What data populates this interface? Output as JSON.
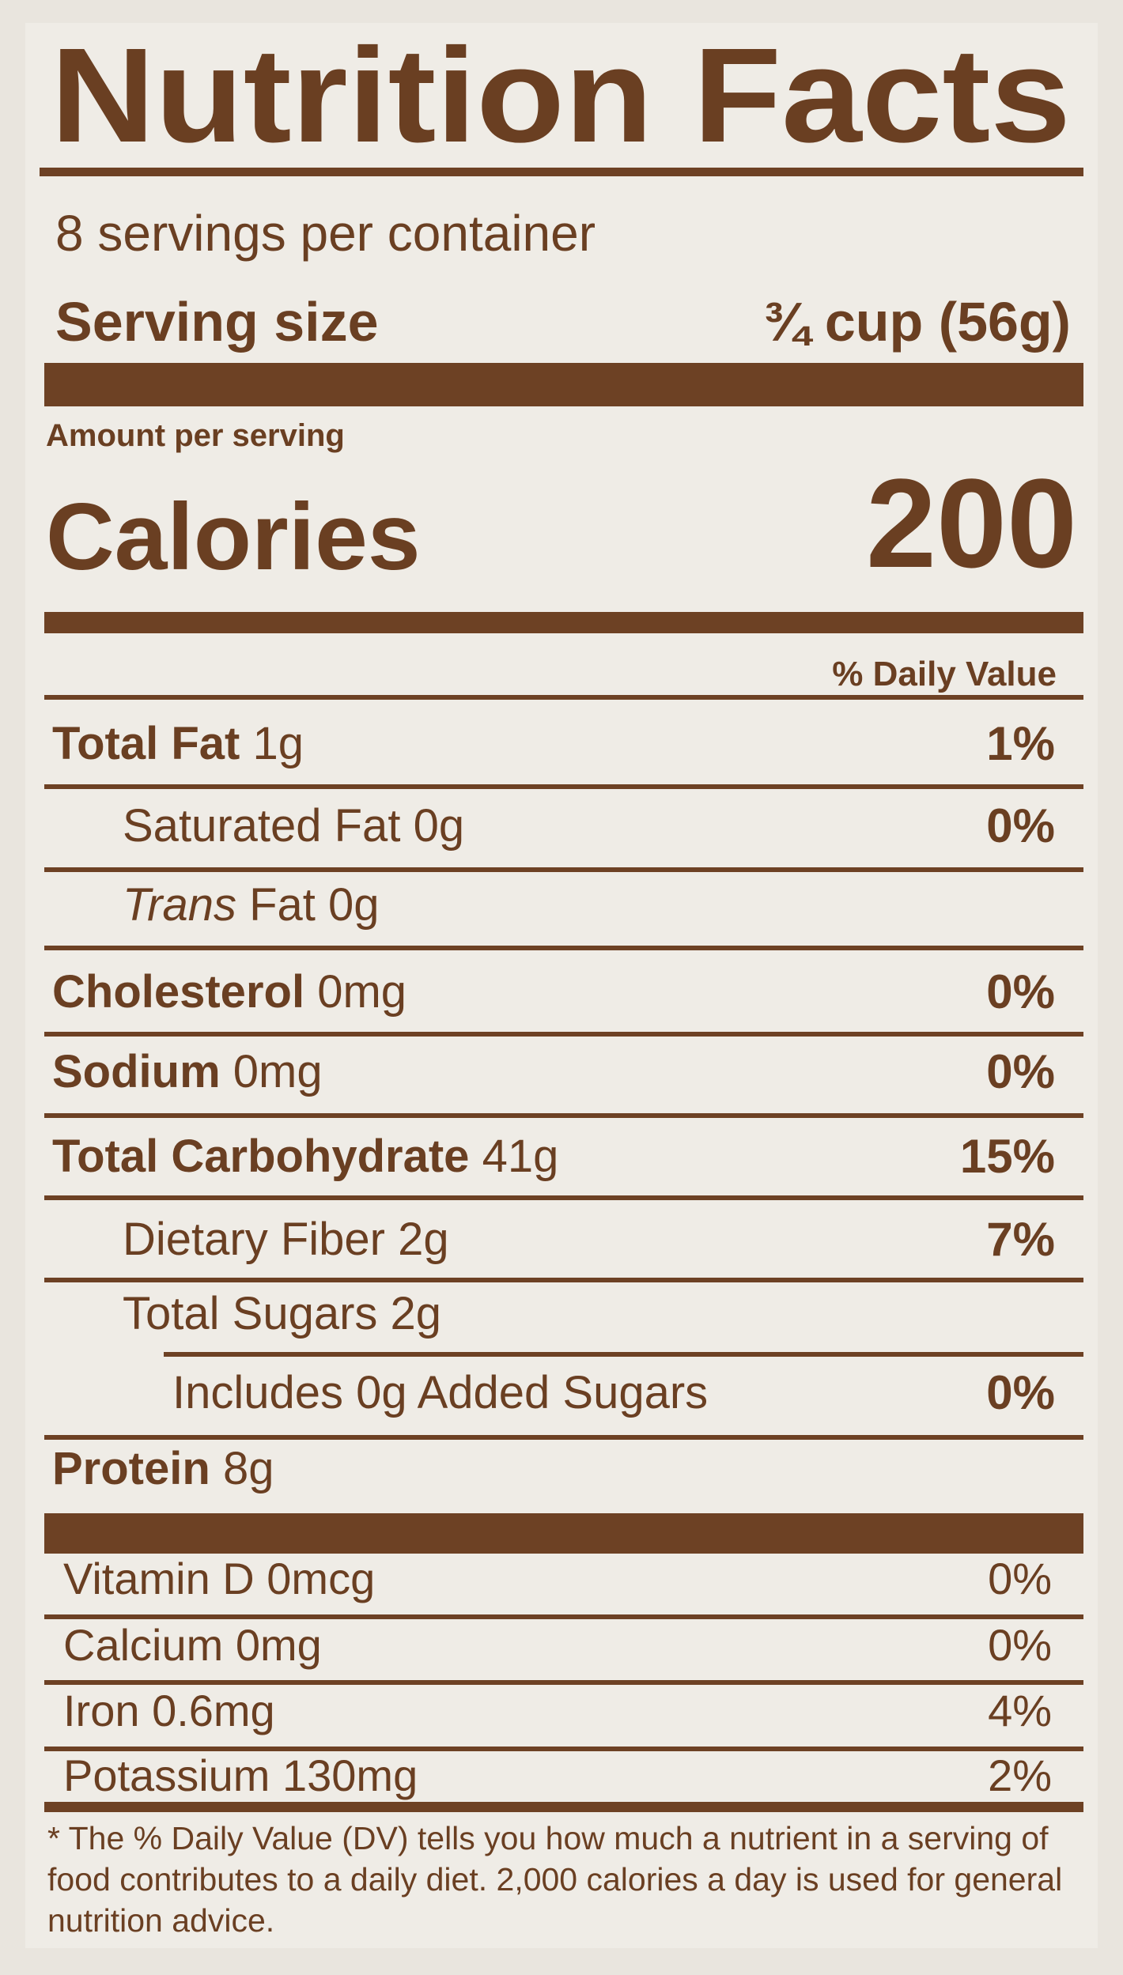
{
  "header": {
    "title": "Nutrition Facts",
    "servings": "8 servings per container",
    "serving_size_label": "Serving size",
    "serving_size_value": "¾ cup (56g)"
  },
  "calories": {
    "amount_label": "Amount per serving",
    "label": "Calories",
    "value": "200"
  },
  "dv_header": "% Daily Value",
  "nutrients": [
    {
      "name": "Total Fat",
      "amount": "1g",
      "dv": "1%"
    },
    {
      "name": "Saturated Fat",
      "amount": "0g",
      "dv": "0%"
    },
    {
      "italic": "Trans",
      "name": "Fat",
      "amount": "0g"
    },
    {
      "name": "Cholesterol",
      "amount": "0mg",
      "dv": "0%"
    },
    {
      "name": "Sodium",
      "amount": "0mg",
      "dv": "0%"
    },
    {
      "name": "Total Carbohydrate",
      "amount": "41g",
      "dv": "15%"
    },
    {
      "name": "Dietary Fiber",
      "amount": "2g",
      "dv": "7%"
    },
    {
      "name": "Total Sugars",
      "amount": "2g"
    },
    {
      "name": "Includes 0g Added Sugars",
      "dv": "0%"
    },
    {
      "name": "Protein",
      "amount": "8g"
    }
  ],
  "vitamins": [
    {
      "name": "Vitamin D",
      "amount": "0mcg",
      "dv": "0%"
    },
    {
      "name": "Calcium",
      "amount": "0mg",
      "dv": "0%"
    },
    {
      "name": "Iron",
      "amount": "0.6mg",
      "dv": "4%"
    },
    {
      "name": "Potassium",
      "amount": "130mg",
      "dv": "2%"
    }
  ],
  "footnote": "* The % Daily Value (DV) tells you how much a nutrient in a serving of food contributes to a daily diet. 2,000 calories a day is used for general nutrition advice."
}
